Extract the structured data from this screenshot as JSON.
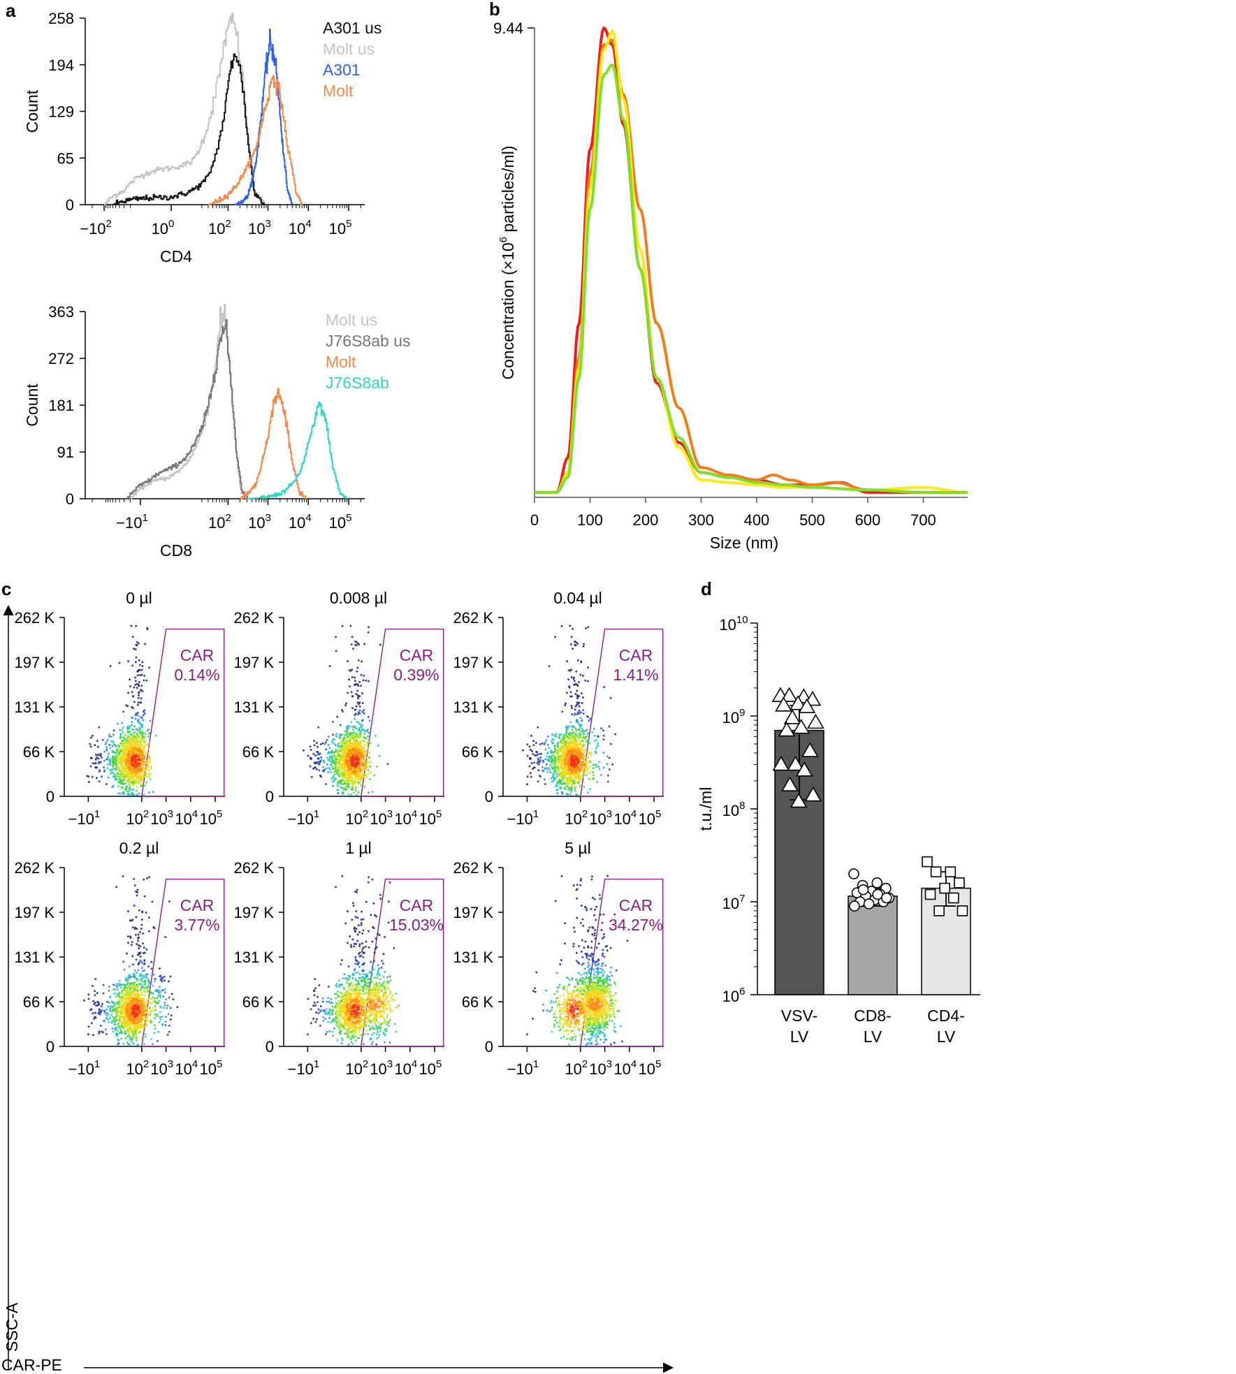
{
  "panels": {
    "a": {
      "label": "a",
      "cd4": {
        "type": "histogram",
        "xlabel": "CD4",
        "ylabel": "Count",
        "yticks": [
          "0",
          "65",
          "129",
          "194",
          "258"
        ],
        "ymax": 258,
        "xticks": [
          {
            "base": "−10",
            "exp": "2",
            "value": -100
          },
          {
            "base": "10",
            "exp": "0",
            "value": 1
          },
          {
            "base": "10",
            "exp": "2",
            "value": 100
          },
          {
            "base": "10",
            "exp": "3",
            "value": 1000
          },
          {
            "base": "10",
            "exp": "4",
            "value": 10000
          },
          {
            "base": "10",
            "exp": "5",
            "value": 100000
          }
        ],
        "legend": [
          {
            "name": "A301 us",
            "color": "#111111"
          },
          {
            "name": "Molt us",
            "color": "#c4c4c4"
          },
          {
            "name": "A301",
            "color": "#2f62e8"
          },
          {
            "name": "Molt",
            "color": "#f08a4b"
          }
        ],
        "series": [
          {
            "name": "Molt us",
            "color": "#c4c4c4",
            "peak_x": 130,
            "peak_count": 258,
            "x": [
              -100,
              -30,
              10,
              40,
              80,
              130,
              200,
              300,
              450,
              800
            ],
            "y": [
              0,
              20,
              60,
              140,
              230,
              258,
              200,
              100,
              20,
              0
            ]
          },
          {
            "name": "A301 us",
            "color": "#111111",
            "peak_x": 150,
            "peak_count": 215,
            "x": [
              -60,
              0,
              30,
              70,
              110,
              150,
              220,
              320,
              450,
              800
            ],
            "y": [
              0,
              10,
              40,
              110,
              185,
              215,
              170,
              80,
              15,
              0
            ]
          },
          {
            "name": "A301",
            "color": "#2f62e8",
            "peak_x": 1100,
            "peak_count": 225,
            "x": [
              150,
              300,
              500,
              800,
              1100,
              1500,
              2200,
              3000,
              4000
            ],
            "y": [
              0,
              10,
              60,
              170,
              225,
              200,
              90,
              20,
              0
            ]
          },
          {
            "name": "Molt",
            "color": "#f08a4b",
            "peak_x": 1300,
            "peak_count": 180,
            "x": [
              30,
              100,
              250,
              500,
              800,
              1300,
              2000,
              3000,
              5000,
              7000
            ],
            "y": [
              0,
              15,
              45,
              80,
              130,
              180,
              150,
              80,
              15,
              0
            ]
          }
        ]
      },
      "cd8": {
        "type": "histogram",
        "xlabel": "CD8",
        "ylabel": "Count",
        "yticks": [
          "0",
          "91",
          "181",
          "272",
          "363"
        ],
        "ymax": 363,
        "xticks": [
          {
            "base": "−10",
            "exp": "1",
            "value": -10
          },
          {
            "base": "10",
            "exp": "2",
            "value": 100
          },
          {
            "base": "10",
            "exp": "3",
            "value": 1000
          },
          {
            "base": "10",
            "exp": "4",
            "value": 10000
          },
          {
            "base": "10",
            "exp": "5",
            "value": 100000
          }
        ],
        "legend": [
          {
            "name": "Molt us",
            "color": "#c4c4c4"
          },
          {
            "name": "J76S8ab us",
            "color": "#777777"
          },
          {
            "name": "Molt",
            "color": "#f08a4b"
          },
          {
            "name": "J76S8ab",
            "color": "#2fd5c0"
          }
        ],
        "series": [
          {
            "name": "Molt us",
            "color": "#c4c4c4",
            "peak_x": 80,
            "peak_count": 363,
            "x": [
              -20,
              0,
              30,
              60,
              80,
              110,
              150,
              200,
              300
            ],
            "y": [
              0,
              40,
              180,
              330,
              363,
              250,
              100,
              20,
              0
            ]
          },
          {
            "name": "J76S8ab us",
            "color": "#777777",
            "peak_x": 85,
            "peak_count": 335,
            "x": [
              -25,
              -5,
              25,
              55,
              85,
              115,
              160,
              220,
              320
            ],
            "y": [
              0,
              35,
              160,
              300,
              335,
              230,
              90,
              15,
              0
            ]
          },
          {
            "name": "Molt",
            "color": "#f08a4b",
            "peak_x": 1800,
            "peak_count": 205,
            "x": [
              200,
              500,
              900,
              1400,
              1800,
              2500,
              4000,
              6000,
              9000
            ],
            "y": [
              0,
              30,
              110,
              190,
              205,
              170,
              70,
              10,
              0
            ]
          },
          {
            "name": "J76S8ab",
            "color": "#2fd5c0",
            "peak_x": 18000,
            "peak_count": 185,
            "x": [
              300,
              2000,
              6000,
              10000,
              18000,
              25000,
              40000,
              60000,
              90000
            ],
            "y": [
              0,
              10,
              50,
              110,
              185,
              160,
              60,
              10,
              0
            ]
          }
        ]
      }
    },
    "b": {
      "label": "b",
      "type": "line",
      "xlabel": "Size (nm)",
      "ylabel_main": "Concentration (×10",
      "ylabel_sup": "6",
      "ylabel_tail": " particles/ml)",
      "ymax_label": "9.44",
      "ymax": 9.44,
      "xlim": [
        0,
        780
      ],
      "xticks": [
        "0",
        "100",
        "200",
        "300",
        "400",
        "500",
        "600",
        "700"
      ],
      "series": [
        {
          "name": "red",
          "color": "#ee1c1c",
          "x": [
            0,
            40,
            60,
            80,
            100,
            125,
            140,
            160,
            190,
            220,
            260,
            300,
            350,
            400,
            450,
            500,
            550,
            600,
            700,
            780
          ],
          "y": [
            0.1,
            0.1,
            0.8,
            3.5,
            7.0,
            9.44,
            9.1,
            7.5,
            4.6,
            2.3,
            1.1,
            0.5,
            0.4,
            0.35,
            0.25,
            0.25,
            0.3,
            0.1,
            0.1,
            0.1
          ]
        },
        {
          "name": "orange",
          "color": "#f07d1a",
          "x": [
            0,
            40,
            60,
            80,
            100,
            125,
            140,
            160,
            190,
            220,
            260,
            300,
            350,
            400,
            430,
            460,
            500,
            540,
            600,
            700,
            780
          ],
          "y": [
            0.1,
            0.1,
            0.5,
            2.8,
            6.5,
            9.1,
            9.2,
            8.1,
            5.8,
            3.5,
            1.8,
            0.6,
            0.45,
            0.35,
            0.45,
            0.35,
            0.25,
            0.3,
            0.15,
            0.1,
            0.1
          ]
        },
        {
          "name": "yellow",
          "color": "#ffe81a",
          "x": [
            0,
            40,
            60,
            80,
            100,
            125,
            140,
            160,
            190,
            220,
            260,
            300,
            350,
            400,
            450,
            500,
            600,
            700,
            780
          ],
          "y": [
            0.1,
            0.1,
            0.5,
            2.6,
            6.2,
            9.0,
            9.38,
            8.0,
            5.0,
            2.4,
            1.0,
            0.35,
            0.3,
            0.25,
            0.2,
            0.2,
            0.15,
            0.2,
            0.1
          ]
        },
        {
          "name": "green",
          "color": "#7fe028",
          "x": [
            0,
            40,
            60,
            80,
            100,
            125,
            140,
            160,
            190,
            220,
            260,
            300,
            350,
            400,
            450,
            500,
            600,
            700,
            780
          ],
          "y": [
            0.1,
            0.1,
            0.4,
            2.4,
            5.8,
            8.5,
            8.7,
            7.6,
            4.6,
            2.4,
            1.2,
            0.5,
            0.4,
            0.3,
            0.25,
            0.2,
            0.15,
            0.1,
            0.1
          ]
        }
      ]
    },
    "c": {
      "label": "c",
      "type": "scatter",
      "xlabel": "CAR-PE",
      "ylabel": "SSC-A",
      "gate_name": "CAR",
      "gate_color": "#8a1c8a",
      "yticks": [
        "0",
        "66 K",
        "131 K",
        "197 K",
        "262 K"
      ],
      "xticks": [
        {
          "base": "−10",
          "exp": "1"
        },
        {
          "base": "10",
          "exp": "2"
        },
        {
          "base": "10",
          "exp": "3"
        },
        {
          "base": "10",
          "exp": "4"
        },
        {
          "base": "10",
          "exp": "5"
        }
      ],
      "plots": [
        {
          "title": "0 µl",
          "gate_pct": "0.14%",
          "fraction": 0.0014
        },
        {
          "title": "0.008 µl",
          "gate_pct": "0.39%",
          "fraction": 0.0039
        },
        {
          "title": "0.04 µl",
          "gate_pct": "1.41%",
          "fraction": 0.0141
        },
        {
          "title": "0.2 µl",
          "gate_pct": "3.77%",
          "fraction": 0.0377
        },
        {
          "title": "1 µl",
          "gate_pct": "15.03%",
          "fraction": 0.1503
        },
        {
          "title": "5 µl",
          "gate_pct": "34.27%",
          "fraction": 0.3427
        }
      ]
    },
    "d": {
      "label": "d",
      "type": "bar",
      "ylabel": "t.u./ml",
      "yscale": "log",
      "yticks": [
        {
          "base": "10",
          "exp": "6",
          "value": 1000000
        },
        {
          "base": "10",
          "exp": "7",
          "value": 10000000
        },
        {
          "base": "10",
          "exp": "8",
          "value": 100000000
        },
        {
          "base": "10",
          "exp": "9",
          "value": 1000000000
        },
        {
          "base": "10",
          "exp": "10",
          "value": 10000000000
        }
      ],
      "bars": [
        {
          "category_line1": "VSV-",
          "category_line2": "LV",
          "mean": 700000000,
          "err_low": 125000000,
          "err_high": 1300000000,
          "color": "#555555",
          "marker": "triangle",
          "points": [
            1650000000,
            1600000000,
            1650000000,
            1500000000,
            1350000000,
            1300000000,
            1250000000,
            950000000,
            850000000,
            750000000,
            700000000,
            420000000,
            300000000,
            300000000,
            260000000,
            180000000,
            140000000,
            120000000
          ]
        },
        {
          "category_line1": "CD8-",
          "category_line2": "LV",
          "mean": 11500000,
          "err_low": 9000000,
          "err_high": 14000000,
          "color": "#a6a6a6",
          "marker": "circle",
          "points": [
            20000000,
            16000000,
            15000000,
            14000000,
            13000000,
            12500000,
            12000000,
            11500000,
            11000000,
            10500000,
            10000000,
            10000000,
            9500000,
            9000000,
            12000000,
            13500000,
            11000000
          ]
        },
        {
          "category_line1": "CD4-",
          "category_line2": "LV",
          "mean": 14000000,
          "err_low": 9000000,
          "err_high": 21000000,
          "color": "#e6e6e6",
          "marker": "square",
          "points": [
            27000000,
            21000000,
            21000000,
            16000000,
            14000000,
            12000000,
            11000000,
            8000000,
            8000000
          ]
        }
      ]
    }
  }
}
